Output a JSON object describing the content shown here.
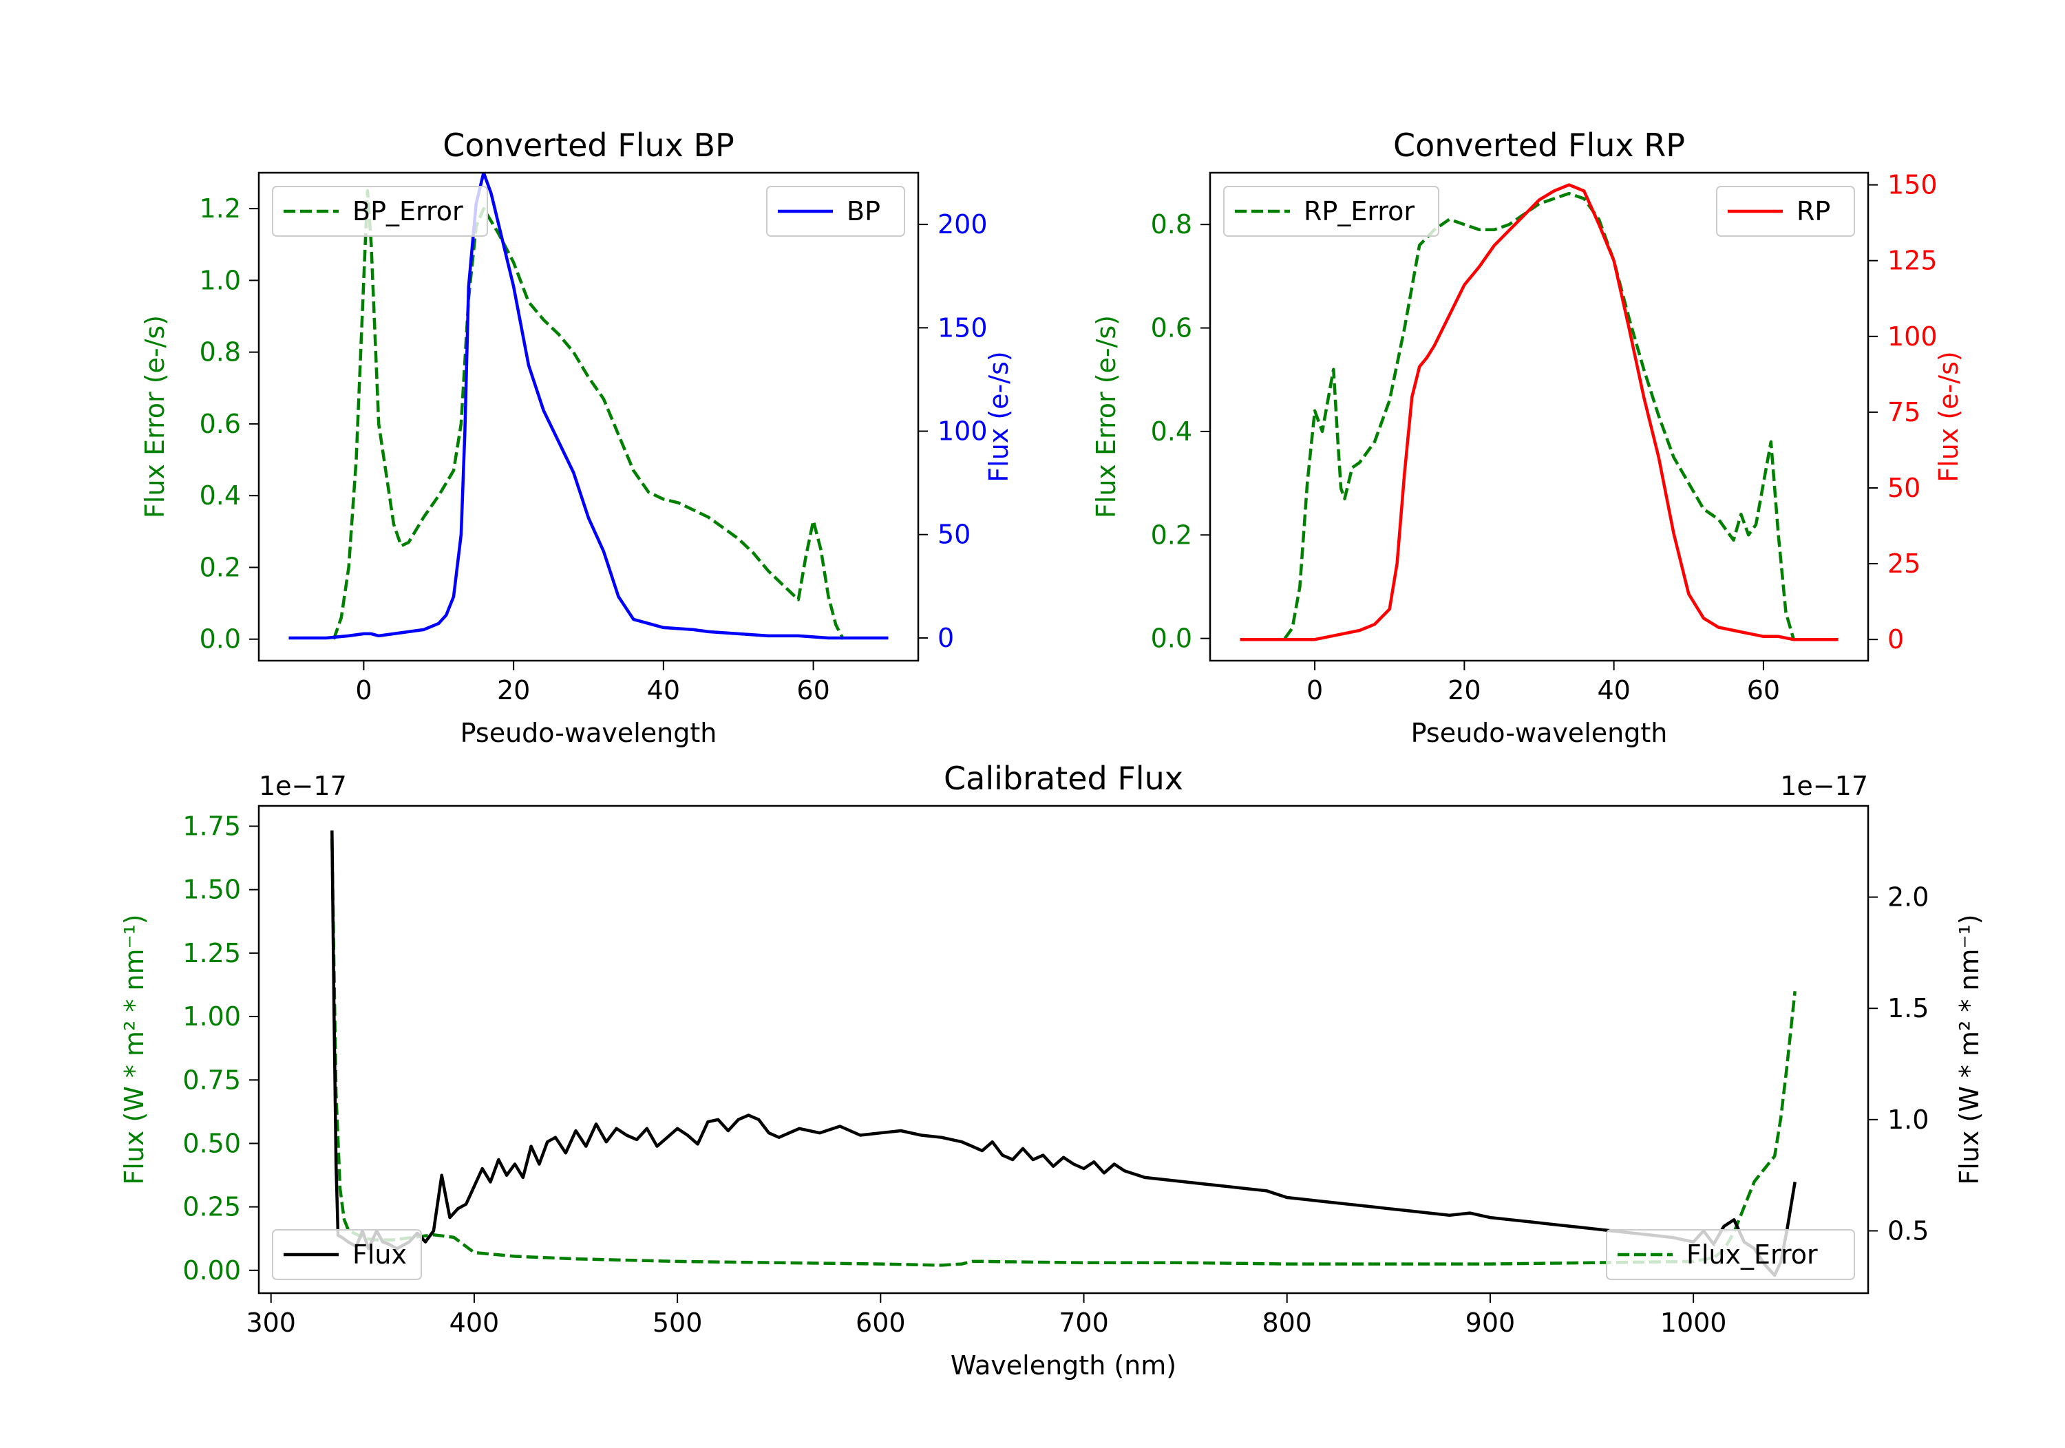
{
  "colors": {
    "error": "#008000",
    "bp": "#0000ff",
    "rp": "#ff0000",
    "flux": "#000000"
  },
  "chart_data": [
    {
      "type": "line",
      "title": "Converted Flux BP",
      "xlabel": "Pseudo-wavelength",
      "ylabel_left": "Flux Error (e-/s)",
      "ylabel_right": "Flux (e-/s)",
      "xlim": [
        -14,
        74
      ],
      "ylim_left": [
        -0.06,
        1.3
      ],
      "ylim_right": [
        -11,
        225
      ],
      "xticks": [
        0,
        20,
        40,
        60
      ],
      "yticks_left": [
        0.0,
        0.2,
        0.4,
        0.6,
        0.8,
        1.0,
        1.2
      ],
      "yticks_right": [
        0,
        50,
        100,
        150,
        200
      ],
      "legend": {
        "left": "BP_Error",
        "right": "BP"
      },
      "series": [
        {
          "name": "BP_Error",
          "axis": "left",
          "style": "dashed",
          "color": "#008000",
          "x": [
            -4,
            -3,
            -2,
            -1,
            0,
            0.5,
            1,
            2,
            3,
            4,
            5,
            6,
            8,
            10,
            12,
            13,
            14,
            15,
            16,
            18,
            20,
            22,
            24,
            26,
            28,
            30,
            32,
            34,
            36,
            38,
            40,
            42,
            44,
            46,
            48,
            50,
            52,
            54,
            56,
            58,
            59,
            60,
            61,
            62,
            63,
            64
          ],
          "y": [
            0.0,
            0.06,
            0.2,
            0.5,
            1.0,
            1.25,
            1.1,
            0.6,
            0.46,
            0.32,
            0.26,
            0.27,
            0.34,
            0.4,
            0.47,
            0.6,
            0.95,
            1.15,
            1.2,
            1.13,
            1.05,
            0.94,
            0.89,
            0.85,
            0.8,
            0.73,
            0.67,
            0.57,
            0.47,
            0.41,
            0.39,
            0.38,
            0.36,
            0.34,
            0.31,
            0.28,
            0.24,
            0.19,
            0.15,
            0.11,
            0.23,
            0.33,
            0.25,
            0.12,
            0.04,
            0.0
          ]
        },
        {
          "name": "BP",
          "axis": "right",
          "style": "solid",
          "color": "#0000ff",
          "x": [
            -10,
            -5,
            -2,
            0,
            1,
            2,
            4,
            6,
            8,
            10,
            11,
            12,
            13,
            13.5,
            14,
            15,
            16,
            17,
            18,
            20,
            22,
            24,
            26,
            28,
            30,
            32,
            34,
            36,
            38,
            40,
            44,
            46,
            50,
            54,
            58,
            62,
            66,
            70
          ],
          "y": [
            0,
            0,
            1,
            2,
            2,
            1,
            2,
            3,
            4,
            7,
            11,
            20,
            50,
            100,
            170,
            210,
            225,
            215,
            200,
            170,
            132,
            110,
            95,
            80,
            58,
            42,
            20,
            9,
            7,
            5,
            4,
            3,
            2,
            1,
            1,
            0,
            0,
            0
          ]
        }
      ]
    },
    {
      "type": "line",
      "title": "Converted Flux RP",
      "xlabel": "Pseudo-wavelength",
      "ylabel_left": "Flux Error (e-/s)",
      "ylabel_right": "Flux (e-/s)",
      "xlim": [
        -14,
        74
      ],
      "ylim_left": [
        -0.043,
        0.9
      ],
      "ylim_right": [
        -7,
        154
      ],
      "xticks": [
        0,
        20,
        40,
        60
      ],
      "yticks_left": [
        0.0,
        0.2,
        0.4,
        0.6,
        0.8
      ],
      "yticks_right": [
        0,
        25,
        50,
        75,
        100,
        125,
        150
      ],
      "legend": {
        "left": "RP_Error",
        "right": "RP"
      },
      "series": [
        {
          "name": "RP_Error",
          "axis": "left",
          "style": "dashed",
          "color": "#008000",
          "x": [
            -4,
            -3,
            -2,
            -1,
            0,
            0.5,
            1,
            2,
            2.5,
            3,
            3.5,
            4,
            5,
            6,
            8,
            10,
            12,
            14,
            16,
            18,
            20,
            22,
            24,
            26,
            28,
            30,
            32,
            34,
            36,
            38,
            40,
            42,
            44,
            46,
            48,
            50,
            52,
            54,
            56,
            57,
            58,
            59,
            60,
            61,
            62,
            63,
            64
          ],
          "y": [
            0.0,
            0.02,
            0.1,
            0.3,
            0.44,
            0.42,
            0.4,
            0.48,
            0.52,
            0.4,
            0.29,
            0.27,
            0.33,
            0.34,
            0.38,
            0.46,
            0.6,
            0.76,
            0.79,
            0.81,
            0.8,
            0.79,
            0.79,
            0.8,
            0.82,
            0.84,
            0.85,
            0.86,
            0.85,
            0.81,
            0.73,
            0.62,
            0.52,
            0.43,
            0.35,
            0.3,
            0.25,
            0.23,
            0.19,
            0.24,
            0.2,
            0.22,
            0.3,
            0.38,
            0.2,
            0.05,
            0.0
          ]
        },
        {
          "name": "RP",
          "axis": "right",
          "style": "solid",
          "color": "#ff0000",
          "x": [
            -10,
            -5,
            0,
            2,
            4,
            6,
            8,
            10,
            11,
            12,
            13,
            14,
            15,
            16,
            18,
            20,
            22,
            24,
            26,
            28,
            30,
            32,
            34,
            36,
            38,
            40,
            42,
            44,
            46,
            48,
            50,
            52,
            54,
            56,
            58,
            60,
            62,
            64,
            66,
            70
          ],
          "y": [
            0,
            0,
            0,
            1,
            2,
            3,
            5,
            10,
            25,
            55,
            80,
            90,
            93,
            97,
            107,
            117,
            123,
            130,
            135,
            140,
            145,
            148,
            150,
            148,
            137,
            125,
            103,
            80,
            60,
            35,
            15,
            7,
            4,
            3,
            2,
            1,
            1,
            0,
            0,
            0
          ]
        }
      ]
    },
    {
      "type": "line",
      "title": "Calibrated Flux",
      "xlabel": "Wavelength (nm)",
      "ylabel_left": "Flux (W * m² * nm⁻¹)",
      "ylabel_right": "Flux (W * m² * nm⁻¹)",
      "offset_left": "1e−17",
      "offset_right": "1e−17",
      "xlim": [
        294,
        1086
      ],
      "ylim_left": [
        -0.09,
        1.83
      ],
      "ylim_right": [
        0.22,
        2.41
      ],
      "xticks": [
        300,
        400,
        500,
        600,
        700,
        800,
        900,
        1000
      ],
      "yticks_left": [
        0.0,
        0.25,
        0.5,
        0.75,
        1.0,
        1.25,
        1.5,
        1.75
      ],
      "yticks_right": [
        0.5,
        1.0,
        1.5,
        2.0
      ],
      "legend": {
        "left": "Flux",
        "right": "Flux_Error"
      },
      "series": [
        {
          "name": "Flux_Error",
          "axis": "left",
          "style": "dashed",
          "color": "#008000",
          "x": [
            330,
            331,
            332,
            334,
            336,
            338,
            340,
            345,
            350,
            360,
            370,
            380,
            390,
            400,
            420,
            450,
            500,
            550,
            600,
            630,
            640,
            645,
            650,
            700,
            750,
            800,
            850,
            900,
            950,
            1000,
            1010,
            1015,
            1020,
            1025,
            1030,
            1035,
            1040,
            1043,
            1046,
            1048,
            1050
          ],
          "y": [
            1.7,
            1.2,
            0.7,
            0.32,
            0.2,
            0.16,
            0.15,
            0.13,
            0.12,
            0.12,
            0.13,
            0.14,
            0.13,
            0.07,
            0.055,
            0.045,
            0.035,
            0.03,
            0.025,
            0.02,
            0.025,
            0.035,
            0.035,
            0.03,
            0.03,
            0.025,
            0.025,
            0.025,
            0.03,
            0.035,
            0.05,
            0.08,
            0.15,
            0.25,
            0.35,
            0.4,
            0.45,
            0.6,
            0.8,
            0.95,
            1.1
          ]
        },
        {
          "name": "Flux",
          "axis": "right",
          "style": "solid",
          "color": "#000000",
          "x": [
            330,
            331,
            332,
            333,
            335,
            338,
            342,
            345,
            348,
            352,
            355,
            358,
            362,
            368,
            372,
            376,
            380,
            384,
            388,
            392,
            396,
            400,
            404,
            408,
            412,
            416,
            420,
            424,
            428,
            432,
            436,
            440,
            445,
            450,
            455,
            460,
            465,
            470,
            475,
            480,
            485,
            490,
            495,
            500,
            505,
            510,
            515,
            520,
            525,
            530,
            535,
            540,
            545,
            550,
            560,
            570,
            580,
            590,
            600,
            610,
            620,
            630,
            640,
            645,
            650,
            655,
            660,
            665,
            670,
            675,
            680,
            685,
            690,
            695,
            700,
            705,
            710,
            715,
            720,
            730,
            740,
            750,
            760,
            770,
            780,
            790,
            800,
            810,
            820,
            830,
            840,
            850,
            860,
            870,
            880,
            890,
            900,
            910,
            920,
            930,
            940,
            950,
            960,
            970,
            980,
            990,
            1000,
            1005,
            1010,
            1015,
            1020,
            1025,
            1030,
            1035,
            1038,
            1040,
            1043,
            1046,
            1050
          ],
          "y": [
            2.3,
            1.5,
            0.8,
            0.48,
            0.47,
            0.45,
            0.43,
            0.5,
            0.42,
            0.5,
            0.45,
            0.44,
            0.42,
            0.45,
            0.49,
            0.45,
            0.5,
            0.75,
            0.56,
            0.6,
            0.62,
            0.7,
            0.78,
            0.72,
            0.82,
            0.75,
            0.8,
            0.74,
            0.88,
            0.8,
            0.9,
            0.92,
            0.85,
            0.95,
            0.88,
            0.98,
            0.9,
            0.96,
            0.93,
            0.91,
            0.96,
            0.88,
            0.92,
            0.96,
            0.93,
            0.89,
            0.99,
            1.0,
            0.95,
            1.0,
            1.02,
            1.0,
            0.94,
            0.92,
            0.96,
            0.94,
            0.97,
            0.93,
            0.94,
            0.95,
            0.93,
            0.92,
            0.9,
            0.88,
            0.86,
            0.9,
            0.84,
            0.82,
            0.87,
            0.82,
            0.84,
            0.79,
            0.83,
            0.8,
            0.78,
            0.81,
            0.76,
            0.8,
            0.77,
            0.74,
            0.73,
            0.72,
            0.71,
            0.7,
            0.69,
            0.68,
            0.65,
            0.64,
            0.63,
            0.62,
            0.61,
            0.6,
            0.59,
            0.58,
            0.57,
            0.58,
            0.56,
            0.55,
            0.54,
            0.53,
            0.52,
            0.51,
            0.5,
            0.49,
            0.48,
            0.47,
            0.45,
            0.5,
            0.44,
            0.52,
            0.55,
            0.45,
            0.42,
            0.35,
            0.32,
            0.3,
            0.36,
            0.5,
            0.72
          ]
        }
      ]
    }
  ]
}
